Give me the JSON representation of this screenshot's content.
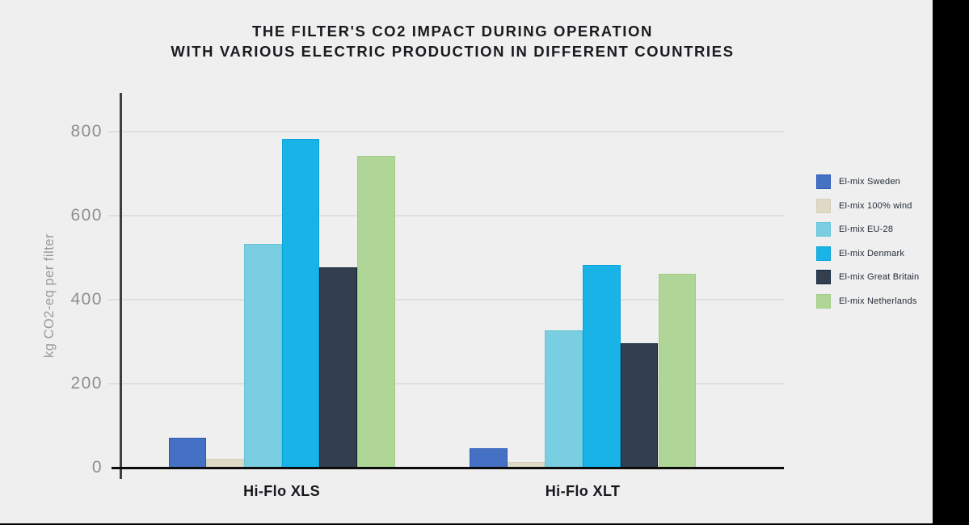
{
  "page": {
    "background_color": "#EFEFEF",
    "right_band_color": "#000000",
    "bottom_edge_color": "#000000"
  },
  "chart_data": {
    "type": "bar",
    "title_line1": "THE FILTER'S CO2 IMPACT DURING OPERATION",
    "title_line2": "WITH VARIOUS ELECTRIC PRODUCTION IN DIFFERENT COUNTRIES",
    "ylabel": "kg CO2-eq per filter",
    "xlabel": "",
    "categories": [
      "Hi-Flo XLS",
      "Hi-Flo XLT"
    ],
    "y_ticks": [
      0,
      200,
      400,
      600,
      800
    ],
    "ylim": [
      0,
      890
    ],
    "grid": "horizontal",
    "legend_position": "right",
    "series": [
      {
        "name": "El-mix Sweden",
        "color": "#4571C4",
        "border": "#2E59B8",
        "values": [
          70,
          45
        ]
      },
      {
        "name": "El-mix 100% wind",
        "color": "#DFD9C6",
        "border": "#D6CFB9",
        "values": [
          20,
          12
        ]
      },
      {
        "name": "El-mix EU-28",
        "color": "#7ACEE2",
        "border": "#66C3D9",
        "values": [
          530,
          325
        ]
      },
      {
        "name": "El-mix Denmark",
        "color": "#19B3E8",
        "border": "#0AA4DA",
        "values": [
          780,
          480
        ]
      },
      {
        "name": "El-mix Great Britain",
        "color": "#333F4E",
        "border": "#102741",
        "values": [
          475,
          295
        ]
      },
      {
        "name": "El-mix Netherlands",
        "color": "#B0D697",
        "border": "#A1CB83",
        "values": [
          740,
          460
        ]
      }
    ]
  }
}
